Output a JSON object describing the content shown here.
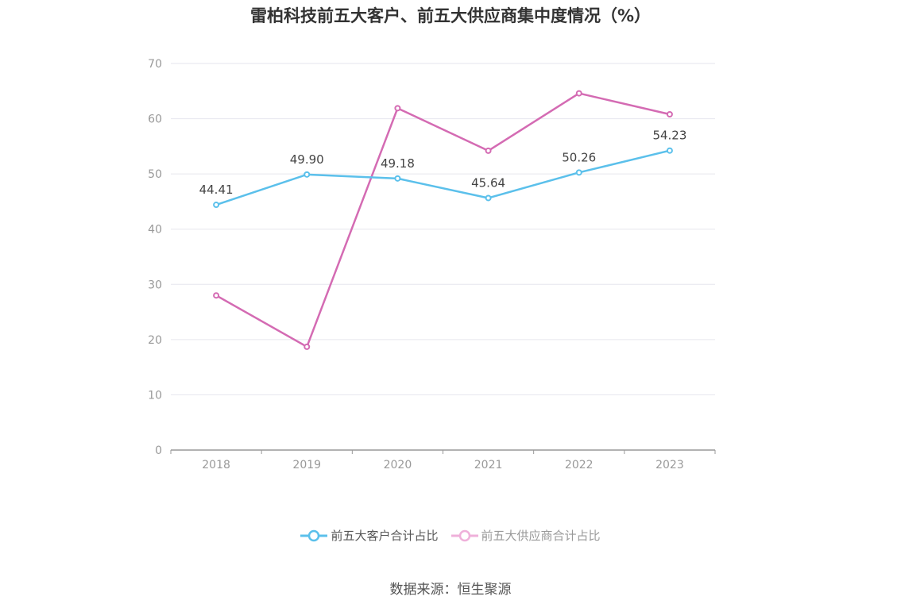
{
  "chart_data": {
    "type": "line",
    "title": "雷柏科技前五大客户、前五大供应商集中度情况（%）",
    "categories": [
      "2018",
      "2019",
      "2020",
      "2021",
      "2022",
      "2023"
    ],
    "ylim": [
      0,
      70
    ],
    "yticks": [
      "0",
      "10",
      "20",
      "30",
      "40",
      "50",
      "60",
      "70"
    ],
    "grid": true,
    "legend_position": "bottom",
    "series": [
      {
        "name": "前五大客户合计占比",
        "values": [
          44.41,
          49.9,
          49.18,
          45.64,
          50.26,
          54.23
        ],
        "labels": [
          "44.41",
          "49.90",
          "49.18",
          "45.64",
          "50.26",
          "54.23"
        ],
        "color": "#5bc0eb",
        "show_labels": true,
        "legend_active": true
      },
      {
        "name": "前五大供应商合计占比",
        "values": [
          28.0,
          18.7,
          61.9,
          54.2,
          64.6,
          60.8
        ],
        "color": "#d46bb3",
        "legend_color": "#efb0da",
        "show_labels": false,
        "legend_active": false
      }
    ]
  },
  "source": "数据来源：恒生聚源"
}
